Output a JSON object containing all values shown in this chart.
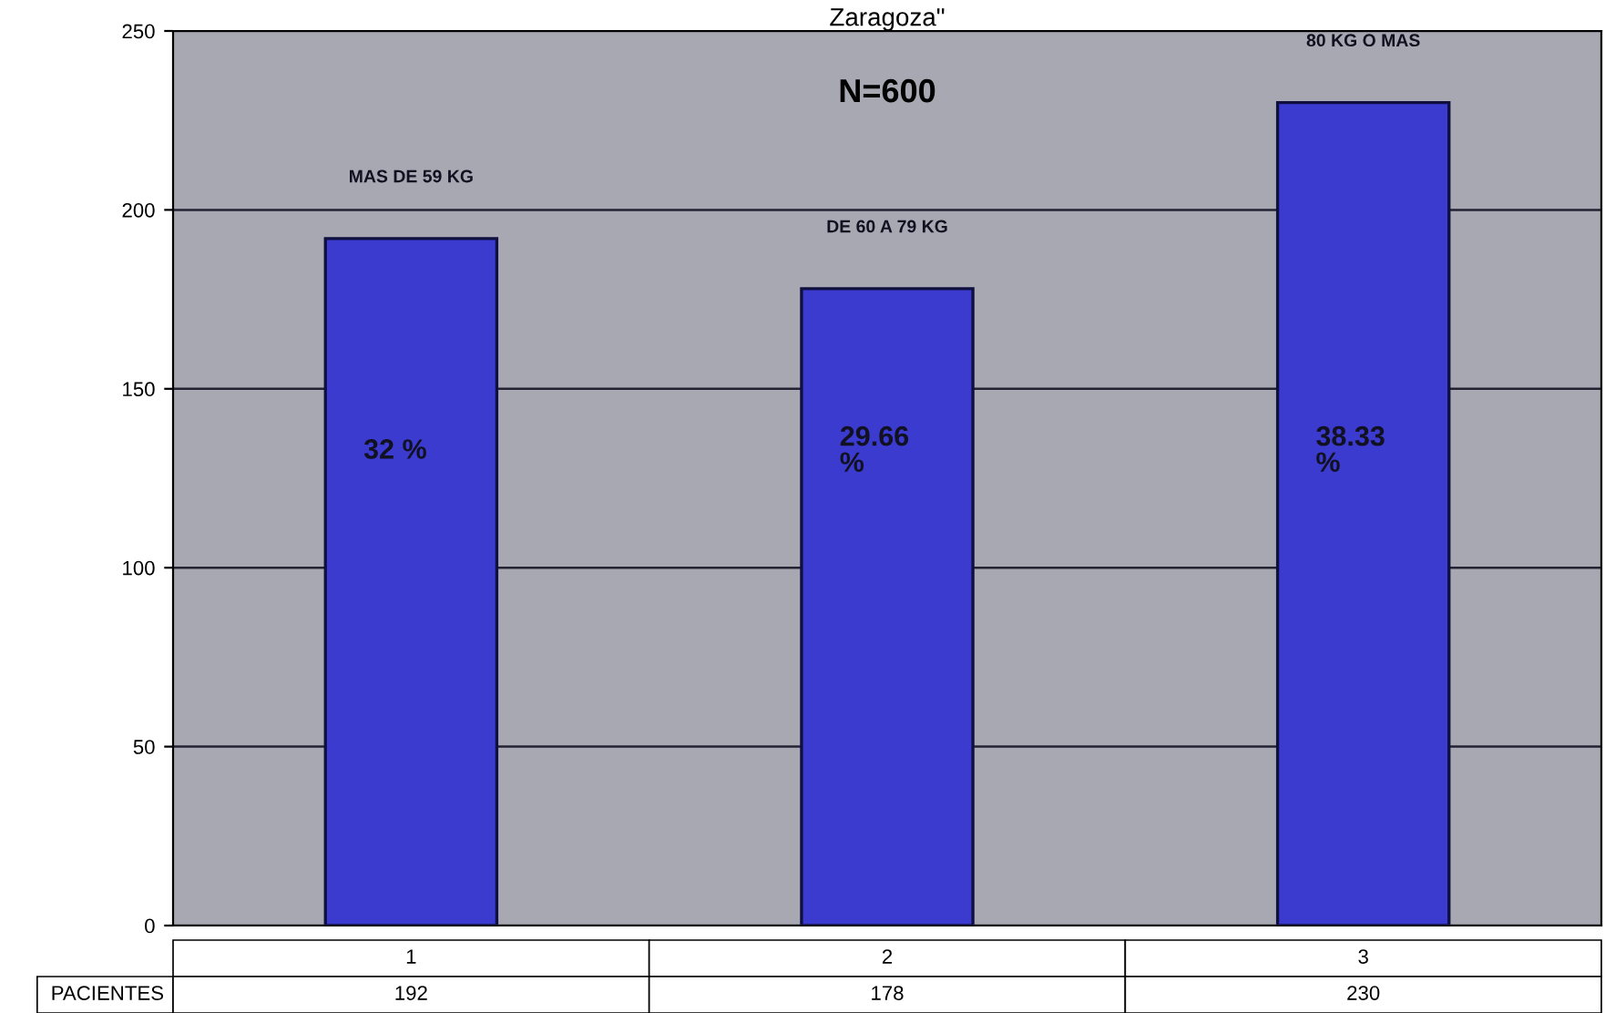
{
  "chart_data": {
    "type": "bar",
    "title": "Zaragoza\"",
    "categories": [
      "1",
      "2",
      "3"
    ],
    "series": [
      {
        "name": "PACIENTES",
        "color": "#3b3bd0",
        "values": [
          192,
          178,
          230
        ]
      }
    ],
    "ylim": [
      0,
      250
    ],
    "yticks": [
      0,
      50,
      100,
      150,
      200,
      250
    ],
    "grid": "y",
    "data_labels": true,
    "annotations": [
      "N=600",
      "MAS DE 59 KG",
      "DE 60 A 79 KG",
      "80 KG O MAS",
      "32 %",
      "29.66\n%",
      "38.33\n%"
    ]
  }
}
